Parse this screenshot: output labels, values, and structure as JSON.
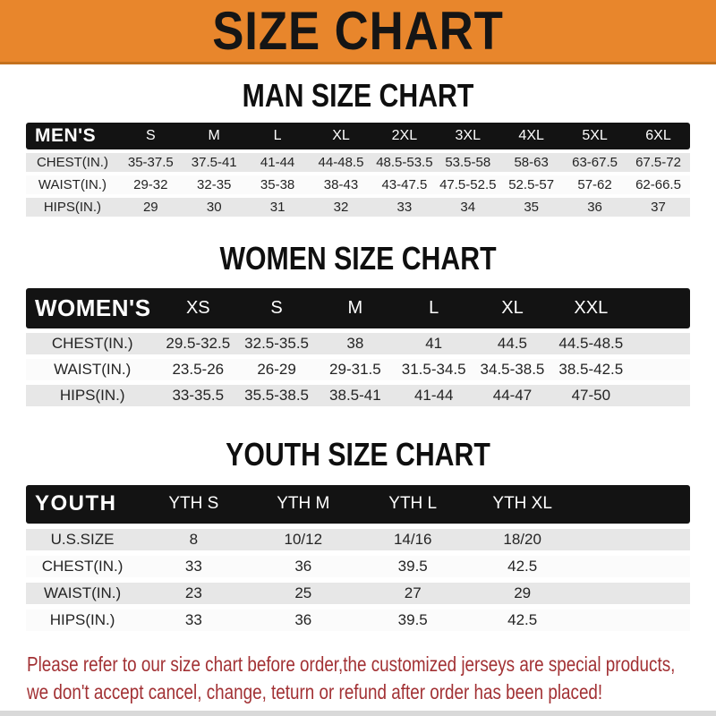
{
  "banner": {
    "title": "SIZE CHART",
    "bg_color": "#E8862C"
  },
  "sections": [
    {
      "heading": "MAN SIZE CHART",
      "label": "MEN'S",
      "columns": [
        "S",
        "M",
        "L",
        "XL",
        "2XL",
        "3XL",
        "4XL",
        "5XL",
        "6XL"
      ],
      "rows": [
        {
          "label": "CHEST(IN.)",
          "values": [
            "35-37.5",
            "37.5-41",
            "41-44",
            "44-48.5",
            "48.5-53.5",
            "53.5-58",
            "58-63",
            "63-67.5",
            "67.5-72"
          ]
        },
        {
          "label": "WAIST(IN.)",
          "values": [
            "29-32",
            "32-35",
            "35-38",
            "38-43",
            "43-47.5",
            "47.5-52.5",
            "52.5-57",
            "57-62",
            "62-66.5"
          ]
        },
        {
          "label": "HIPS(IN.)",
          "values": [
            "29",
            "30",
            "31",
            "32",
            "33",
            "34",
            "35",
            "36",
            "37"
          ]
        }
      ]
    },
    {
      "heading": "WOMEN SIZE CHART",
      "label": "WOMEN'S",
      "columns": [
        "XS",
        "S",
        "M",
        "L",
        "XL",
        "XXL"
      ],
      "rows": [
        {
          "label": "CHEST(IN.)",
          "values": [
            "29.5-32.5",
            "32.5-35.5",
            "38",
            "41",
            "44.5",
            "44.5-48.5"
          ]
        },
        {
          "label": "WAIST(IN.)",
          "values": [
            "23.5-26",
            "26-29",
            "29-31.5",
            "31.5-34.5",
            "34.5-38.5",
            "38.5-42.5"
          ]
        },
        {
          "label": "HIPS(IN.)",
          "values": [
            "33-35.5",
            "35.5-38.5",
            "38.5-41",
            "41-44",
            "44-47",
            "47-50"
          ]
        }
      ]
    },
    {
      "heading": "YOUTH SIZE CHART",
      "label": "YOUTH",
      "columns": [
        "YTH S",
        "YTH M",
        "YTH L",
        "YTH XL"
      ],
      "rows": [
        {
          "label": "U.S.SIZE",
          "values": [
            "8",
            "10/12",
            "14/16",
            "18/20"
          ]
        },
        {
          "label": "CHEST(IN.)",
          "values": [
            "33",
            "36",
            "39.5",
            "42.5"
          ]
        },
        {
          "label": "WAIST(IN.)",
          "values": [
            "23",
            "25",
            "27",
            "29"
          ]
        },
        {
          "label": "HIPS(IN.)",
          "values": [
            "33",
            "36",
            "39.5",
            "42.5"
          ]
        }
      ]
    }
  ],
  "footer": {
    "line1": "Please refer to our size chart before order,the customized jerseys are special products,",
    "line2": "we don't accept cancel, change, teturn or refund after order has been placed!"
  },
  "colors": {
    "accent_orange": "#E8862C",
    "bar_black": "#131313",
    "row_gray": "#E7E7E7",
    "row_white": "#FBFBFB",
    "note_red": "#A23134"
  }
}
